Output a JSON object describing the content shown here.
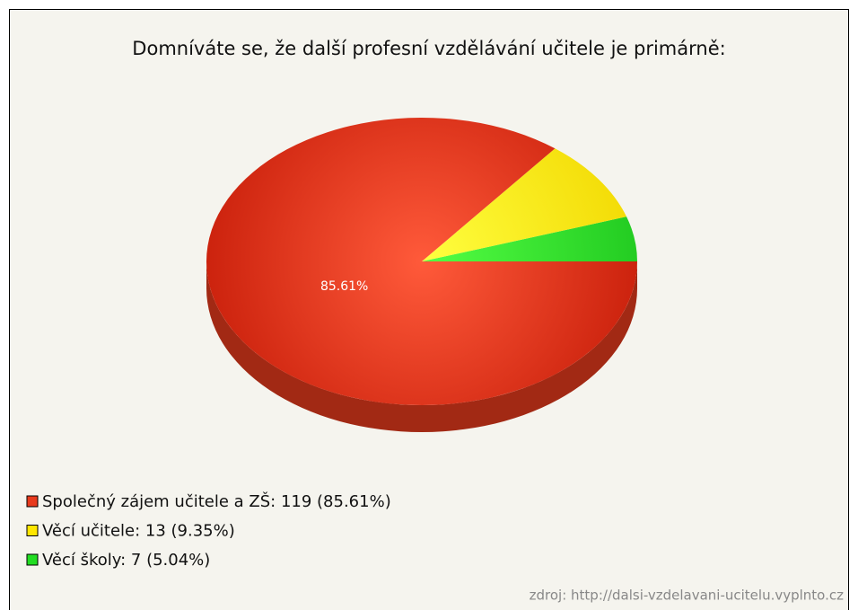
{
  "chart_data": {
    "type": "pie",
    "title": "Domníváte se, že další profesní vzdělávání učitele je primárně:",
    "categories": [
      "Společný zájem učitele a ZŠ: 119 (85.61%)",
      "Věcí učitele: 13 (9.35%)",
      "Věcí školy: 7 (5.04%)"
    ],
    "values": [
      85.61,
      9.35,
      5.04
    ],
    "value_labels": [
      "85.61%",
      null,
      null
    ],
    "colors": [
      "#e83a1c",
      "#ffe600",
      "#22dd22"
    ],
    "source": "zdroj: http://dalsi-vzdelavani-ucitelu.vyplnto.cz"
  }
}
